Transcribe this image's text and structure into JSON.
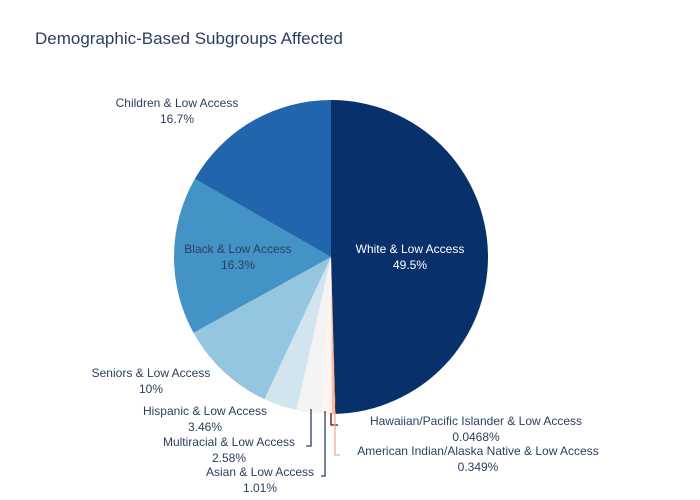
{
  "chart_data": {
    "type": "pie",
    "title": "Demographic-Based Subgroups Affected",
    "direction": "clockwise",
    "slices": [
      {
        "label": "White & Low Access",
        "value": 49.5,
        "display": "49.5%",
        "color": "#08306b"
      },
      {
        "label": "Hawaiian/Pacific Islander & Low Access",
        "value": 0.0468,
        "display": "0.0468%",
        "color": "#67000d"
      },
      {
        "label": "American Indian/Alaska Native & Low Access",
        "value": 0.349,
        "display": "0.349%",
        "color": "#fcbba1"
      },
      {
        "label": "Asian & Low Access",
        "value": 1.01,
        "display": "1.01%",
        "color": "#fff5f0"
      },
      {
        "label": "Multiracial & Low Access",
        "value": 2.58,
        "display": "2.58%",
        "color": "#f4f4f4"
      },
      {
        "label": "Hispanic & Low Access",
        "value": 3.46,
        "display": "3.46%",
        "color": "#d3e4f1"
      },
      {
        "label": "Seniors & Low Access",
        "value": 10,
        "display": "10%",
        "color": "#94c6e0"
      },
      {
        "label": "Black & Low Access",
        "value": 16.3,
        "display": "16.3%",
        "color": "#4393c6"
      },
      {
        "label": "Children & Low Access",
        "value": 16.7,
        "display": "16.7%",
        "color": "#2166ac"
      }
    ]
  }
}
